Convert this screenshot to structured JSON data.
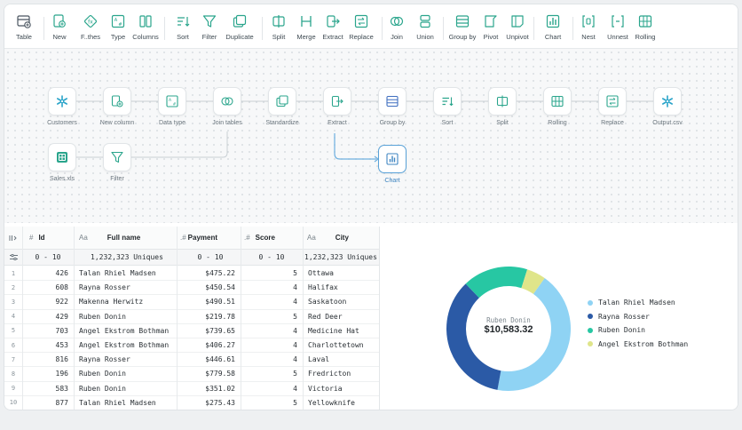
{
  "toolbar": {
    "items": [
      {
        "label": "Table",
        "icon": "table-icon"
      },
      {
        "label": "New",
        "icon": "new-icon"
      },
      {
        "label": "F..thes",
        "icon": "formula-icon"
      },
      {
        "label": "Type",
        "icon": "type-icon"
      },
      {
        "label": "Columns",
        "icon": "columns-icon"
      },
      {
        "label": "Sort",
        "icon": "sort-icon"
      },
      {
        "label": "Filter",
        "icon": "filter-icon"
      },
      {
        "label": "Duplicate",
        "icon": "duplicate-icon"
      },
      {
        "label": "Split",
        "icon": "split-icon"
      },
      {
        "label": "Merge",
        "icon": "merge-icon"
      },
      {
        "label": "Extract",
        "icon": "extract-icon"
      },
      {
        "label": "Replace",
        "icon": "replace-icon"
      },
      {
        "label": "Join",
        "icon": "join-icon"
      },
      {
        "label": "Union",
        "icon": "union-icon"
      },
      {
        "label": "Group by",
        "icon": "group-by-icon"
      },
      {
        "label": "Pivot",
        "icon": "pivot-icon"
      },
      {
        "label": "Unpivot",
        "icon": "unpivot-icon"
      },
      {
        "label": "Chart",
        "icon": "chart-icon"
      },
      {
        "label": "Nest",
        "icon": "nest-icon"
      },
      {
        "label": "Unnest",
        "icon": "unnest-icon"
      },
      {
        "label": "Rolling",
        "icon": "rolling-icon"
      }
    ]
  },
  "flow": {
    "nodes": [
      {
        "label": "Customers",
        "icon": "snowflake-icon"
      },
      {
        "label": "New column",
        "icon": "new-column-icon"
      },
      {
        "label": "Data type",
        "icon": "data-type-icon"
      },
      {
        "label": "Join tables",
        "icon": "join-icon"
      },
      {
        "label": "Standardize",
        "icon": "standardize-icon"
      },
      {
        "label": "Extract",
        "icon": "extract-icon"
      },
      {
        "label": "Group by",
        "icon": "group-by-icon"
      },
      {
        "label": "Sort",
        "icon": "sort-icon"
      },
      {
        "label": "Split",
        "icon": "split-icon"
      },
      {
        "label": "Rolling",
        "icon": "rolling-icon"
      },
      {
        "label": "Replace",
        "icon": "replace-icon"
      },
      {
        "label": "Output.csv",
        "icon": "snowflake-icon"
      },
      {
        "label": "Sales.xls",
        "icon": "spreadsheet-icon"
      },
      {
        "label": "Filter",
        "icon": "filter-icon"
      },
      {
        "label": "Chart",
        "icon": "chart-icon"
      }
    ]
  },
  "table": {
    "columns": [
      {
        "type": "#",
        "name": "Id",
        "summary": "0 - 10"
      },
      {
        "type": "Aa",
        "name": "Full name",
        "summary": "1,232,323 Uniques"
      },
      {
        "type": ".#",
        "name": "Payment",
        "summary": "0 - 10"
      },
      {
        "type": ".#",
        "name": "Score",
        "summary": "0 - 10"
      },
      {
        "type": "Aa",
        "name": "City",
        "summary": "1,232,323 Uniques"
      }
    ],
    "rows": [
      {
        "n": "1",
        "id": "426",
        "name": "Talan Rhiel Madsen",
        "payment": "$475.22",
        "score": "5",
        "city": "Ottawa"
      },
      {
        "n": "2",
        "id": "608",
        "name": "Rayna Rosser",
        "payment": "$450.54",
        "score": "4",
        "city": "Halifax"
      },
      {
        "n": "3",
        "id": "922",
        "name": "Makenna Herwitz",
        "payment": "$490.51",
        "score": "4",
        "city": "Saskatoon"
      },
      {
        "n": "4",
        "id": "429",
        "name": "Ruben Donin",
        "payment": "$219.78",
        "score": "5",
        "city": "Red Deer"
      },
      {
        "n": "5",
        "id": "703",
        "name": "Angel Ekstrom Bothman",
        "payment": "$739.65",
        "score": "4",
        "city": "Medicine Hat"
      },
      {
        "n": "6",
        "id": "453",
        "name": "Angel Ekstrom Bothman",
        "payment": "$406.27",
        "score": "4",
        "city": "Charlottetown"
      },
      {
        "n": "7",
        "id": "816",
        "name": "Rayna Rosser",
        "payment": "$446.61",
        "score": "4",
        "city": "Laval"
      },
      {
        "n": "8",
        "id": "196",
        "name": "Ruben Donin",
        "payment": "$779.58",
        "score": "5",
        "city": "Fredricton"
      },
      {
        "n": "9",
        "id": "583",
        "name": "Ruben Donin",
        "payment": "$351.02",
        "score": "4",
        "city": "Victoria"
      },
      {
        "n": "10",
        "id": "877",
        "name": "Talan Rhiel Madsen",
        "payment": "$275.43",
        "score": "5",
        "city": "Yellowknife"
      }
    ]
  },
  "donut": {
    "center_label": "Ruben Donin",
    "center_value": "$10,583.32",
    "legend": [
      {
        "label": "Talan Rhiel Madsen",
        "color": "#8fd3f4"
      },
      {
        "label": "Rayna Rosser",
        "color": "#2b5aa6"
      },
      {
        "label": "Ruben Donin",
        "color": "#27c7a3"
      },
      {
        "label": "Angel Ekstrom Bothman",
        "color": "#dfe58a"
      }
    ]
  },
  "chart_data": {
    "type": "pie",
    "categories": [
      "Talan Rhiel Madsen",
      "Rayna Rosser",
      "Ruben Donin",
      "Angel Ekstrom Bothman"
    ],
    "values": [
      43,
      35,
      17,
      5
    ]
  },
  "colors": {
    "accent": "#2aa58c",
    "selected": "#5aa2d8"
  }
}
